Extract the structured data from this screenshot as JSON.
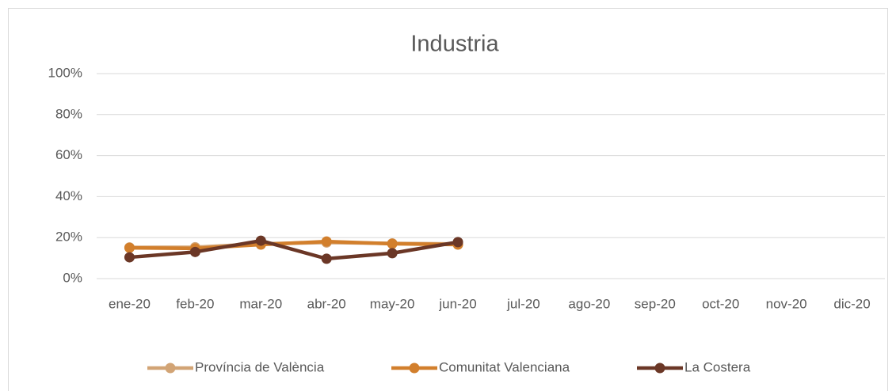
{
  "chart_data": {
    "type": "line",
    "title": "Industria",
    "categories": [
      "ene-20",
      "feb-20",
      "mar-20",
      "abr-20",
      "may-20",
      "jun-20",
      "jul-20",
      "ago-20",
      "sep-20",
      "oct-20",
      "nov-20",
      "dic-20"
    ],
    "series": [
      {
        "name": "Província de València",
        "color": "#d2a475",
        "values": [
          15.2,
          15.3,
          17,
          17.6,
          17.2,
          16.9,
          null,
          null,
          null,
          null,
          null,
          null
        ]
      },
      {
        "name": "Comunitat Valenciana",
        "color": "#d27f2c",
        "values": [
          15,
          14.7,
          16.6,
          18.1,
          17,
          16.6,
          null,
          null,
          null,
          null,
          null,
          null
        ]
      },
      {
        "name": "La Costera",
        "color": "#6b3726",
        "values": [
          10.4,
          13,
          18.5,
          9.7,
          12.4,
          17.8,
          null,
          null,
          null,
          null,
          null,
          null
        ]
      }
    ],
    "ylim": [
      0,
      100
    ],
    "yticks": [
      {
        "value": 0,
        "label": "0%"
      },
      {
        "value": 20,
        "label": "20%"
      },
      {
        "value": 40,
        "label": "40%"
      },
      {
        "value": 60,
        "label": "60%"
      },
      {
        "value": 80,
        "label": "80%"
      },
      {
        "value": 100,
        "label": "100%"
      }
    ],
    "grid": true,
    "legend": "bottom"
  }
}
